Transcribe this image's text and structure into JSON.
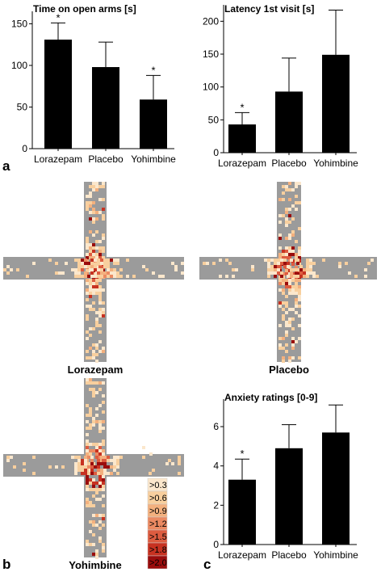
{
  "panel_labels": {
    "a": "a",
    "b": "b",
    "c": "c"
  },
  "maze_labels": [
    "Lorazepam",
    "Placebo",
    "Yohimbine"
  ],
  "legend": {
    "entries": [
      {
        "label": ">0.3",
        "color": "#fbe7cc"
      },
      {
        "label": ">0.6",
        "color": "#f8cf9e"
      },
      {
        "label": ">0.9",
        "color": "#f3b07e"
      },
      {
        "label": ">1.2",
        "color": "#eb8a62"
      },
      {
        "label": ">1.5",
        "color": "#dd5c40"
      },
      {
        "label": ">1.8",
        "color": "#c73221"
      },
      {
        "label": ">2.0",
        "color": "#9a0d0d"
      }
    ]
  },
  "colors": {
    "bar": "#000000",
    "arm": "#9b9b9b"
  },
  "chart_data": [
    {
      "type": "bar",
      "title": "Time on open arms [s]",
      "categories": [
        "Lorazepam",
        "Placebo",
        "Yohimbine"
      ],
      "values": [
        131,
        98,
        59
      ],
      "errors": [
        20,
        30,
        29
      ],
      "significance": [
        "*",
        "",
        "*"
      ],
      "yticks": [
        0,
        50,
        100,
        150
      ],
      "ylim": [
        0,
        165
      ]
    },
    {
      "type": "bar",
      "title": "Latency 1st visit [s]",
      "categories": [
        "Lorazepam",
        "Placebo",
        "Yohimbine"
      ],
      "values": [
        43,
        93,
        149
      ],
      "errors": [
        18,
        51,
        68
      ],
      "significance": [
        "*",
        "",
        ""
      ],
      "yticks": [
        0,
        50,
        100,
        150,
        200
      ],
      "ylim": [
        0,
        225
      ]
    },
    {
      "type": "bar",
      "title": "Anxiety ratings [0-9]",
      "categories": [
        "Lorazepam",
        "Placebo",
        "Yohimbine"
      ],
      "values": [
        3.3,
        4.9,
        5.7
      ],
      "errors": [
        1.05,
        1.2,
        1.4
      ],
      "significance": [
        "*",
        "",
        ""
      ],
      "yticks": [
        0,
        2,
        4,
        6
      ],
      "ylim": [
        0,
        7.4
      ]
    }
  ]
}
